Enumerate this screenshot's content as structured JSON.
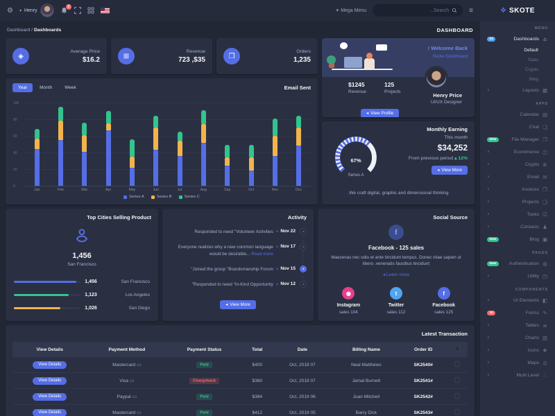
{
  "navbar": {
    "user_name": "Henry",
    "notification_count": "3",
    "mega_menu_label": "Mega Menu",
    "search_placeholder": "...Search",
    "brand": "SKOTE"
  },
  "breadcrumb": {
    "item1": "Dashboard",
    "separator": "/",
    "item2": "Dashboards",
    "page_title": "DASHBOARD"
  },
  "stats": [
    {
      "icon": "tag-icon",
      "glyph": "◈",
      "label": "Average Price",
      "value": "$16.2"
    },
    {
      "icon": "archive-icon",
      "glyph": "⊞",
      "label": "Revenue",
      "value": "723 ,$35"
    },
    {
      "icon": "copy-icon",
      "glyph": "❐",
      "label": "Orders",
      "value": "1,235"
    }
  ],
  "welcome": {
    "title": "! Welcome Back",
    "subtitle": "Skote Dashboard",
    "revenue_value": "$1245",
    "revenue_label": "Revenue",
    "projects_value": "125",
    "projects_label": "Projects",
    "button_label": "View Profile",
    "name": "Henry Price",
    "role": "UI/UX Designer"
  },
  "email_sent": {
    "title": "Email Sent",
    "tabs": [
      "Year",
      "Month",
      "Week"
    ],
    "active_tab": "Year"
  },
  "monthly_earning": {
    "title": "Monthly Earning",
    "this_month": "This month",
    "amount": "$34,252",
    "period_text": "From previous period",
    "delta": "12%",
    "button_label": "View More",
    "footer": ".We craft digital, graphic and dimensional thinking"
  },
  "top_cities": {
    "title": "Top Cities Selling Product",
    "highlight_value": "1,456",
    "highlight_city": "San Francisco"
  },
  "activity": {
    "title": "Activity",
    "items": [
      {
        "date": "Nov 22",
        "text": "Responded to need \"Volunteer Activities",
        "read_more": "",
        "active": false
      },
      {
        "date": "Nov 17",
        "text": "Everyone realizes why a new common language would be desirable...",
        "read_more": "Read more",
        "active": false
      },
      {
        "date": "Nov 15",
        "text": "\"Joined the group \"Boardsmanship Forum",
        "read_more": "",
        "active": true
      },
      {
        "date": "Nov 12",
        "text": "\"Responded to need \"In-Kind Opportunity",
        "read_more": "",
        "active": false
      }
    ],
    "button_label": "View More"
  },
  "social": {
    "title": "Social Source",
    "heading": "Facebook - 125 sales",
    "body": "Maecenas nec odio et ante tincidunt tempus. Donec vitae sapien ut libero .venenatis faucibus tincidunt",
    "learn_more": "Learn more",
    "channels": [
      {
        "name": "Instagram",
        "sales": "sales 104",
        "color": "#e83e8c",
        "glyph": "◉"
      },
      {
        "name": "Twitter",
        "sales": "sales 112",
        "color": "#50a5f1",
        "glyph": "t"
      },
      {
        "name": "Facebook",
        "sales": "sales 125",
        "color": "#556ee6",
        "glyph": "f"
      }
    ]
  },
  "transactions": {
    "title": "Latest Transaction",
    "columns": [
      "View Details",
      "Payment Method",
      "Payment Status",
      "Total",
      "Date",
      "Billing Name",
      "Order ID"
    ],
    "button_label": "View Details",
    "rows": [
      {
        "method": "Mastercard",
        "status": "Paid",
        "status_type": "success",
        "total": "$400",
        "date": "Oct, 2019 07",
        "name": "Neal Matthews",
        "order": "SK2540#"
      },
      {
        "method": "Visa",
        "status": "Chargeback",
        "status_type": "danger",
        "total": "$380",
        "date": "Oct, 2019 07",
        "name": "Jamal Burnett",
        "order": "SK2541#"
      },
      {
        "method": "Paypal",
        "status": "Paid",
        "status_type": "success",
        "total": "$384",
        "date": "Oct, 2019 06",
        "name": "Juan Mitchell",
        "order": "SK2542#"
      },
      {
        "method": "Mastercard",
        "status": "Paid",
        "status_type": "success",
        "total": "$412",
        "date": "Oct, 2019 05",
        "name": "Barry Dick",
        "order": "SK2543#"
      }
    ]
  },
  "sidebar": {
    "brand": "SKOTE",
    "sections": [
      {
        "label": "MENU",
        "items": [
          {
            "label": "Dashboards",
            "icon": "home",
            "badge": "04",
            "badge_color": "info",
            "active": true,
            "submenu": [
              "Default",
              "Saas",
              "Crypto",
              "Blog"
            ],
            "active_sub": "Default"
          },
          {
            "label": "Layouts",
            "icon": "layouts",
            "chevron": true
          }
        ]
      },
      {
        "label": "APPS",
        "items": [
          {
            "label": "Calendar",
            "icon": "calendar"
          },
          {
            "label": "Chat",
            "icon": "chat"
          },
          {
            "label": "File Manager",
            "icon": "file-manager",
            "badge": "New",
            "badge_color": "success"
          },
          {
            "label": "Ecommerce",
            "icon": "ecommerce",
            "chevron": true
          },
          {
            "label": "Crypto",
            "icon": "crypto",
            "chevron": true
          },
          {
            "label": "Email",
            "icon": "email",
            "chevron": true
          },
          {
            "label": "Invoices",
            "icon": "invoices",
            "chevron": true
          },
          {
            "label": "Projects",
            "icon": "projects",
            "chevron": true
          },
          {
            "label": "Tasks",
            "icon": "tasks",
            "chevron": true
          },
          {
            "label": "Contacts",
            "icon": "contacts",
            "chevron": true
          },
          {
            "label": "Blog",
            "icon": "blog",
            "badge": "New",
            "badge_color": "success"
          }
        ]
      },
      {
        "label": "PAGES",
        "items": [
          {
            "label": "Authentication",
            "icon": "authentication",
            "badge": "New",
            "badge_color": "success"
          },
          {
            "label": "Utility",
            "icon": "utility",
            "chevron": true
          }
        ]
      },
      {
        "label": "COMPONENTS",
        "items": [
          {
            "label": "UI Elements",
            "icon": "ui-elements",
            "chevron": true
          },
          {
            "label": "Forms",
            "icon": "forms",
            "badge": "10",
            "badge_color": "danger"
          },
          {
            "label": "Tables",
            "icon": "tables",
            "chevron": true
          },
          {
            "label": "Charts",
            "icon": "charts",
            "chevron": true
          },
          {
            "label": "Icons",
            "icon": "icons",
            "chevron": true
          },
          {
            "label": "Maps",
            "icon": "maps",
            "chevron": true
          },
          {
            "label": "Multi Level",
            "icon": "multi-level",
            "chevron": true
          }
        ]
      }
    ]
  },
  "chart_data": [
    {
      "type": "bar",
      "stacked": true,
      "title": "Email Sent",
      "categories": [
        "Jan",
        "Feb",
        "Mar",
        "Apr",
        "May",
        "Jun",
        "Jul",
        "Aug",
        "Sep",
        "Oct",
        "Nov",
        "Dec"
      ],
      "series": [
        {
          "name": "Series A",
          "color": "#556ee6",
          "values": [
            44,
            55,
            41,
            67,
            22,
            43,
            36,
            52,
            24,
            18,
            36,
            48
          ]
        },
        {
          "name": "Series B",
          "color": "#f1b44c",
          "values": [
            13,
            23,
            20,
            8,
            13,
            27,
            18,
            22,
            10,
            16,
            24,
            22
          ]
        },
        {
          "name": "Series C",
          "color": "#34c38f",
          "values": [
            11,
            17,
            15,
            15,
            21,
            14,
            11,
            17,
            15,
            15,
            21,
            14
          ]
        }
      ],
      "ylim": [
        0,
        100
      ],
      "yticks": [
        0,
        20,
        40,
        60,
        80,
        100
      ],
      "grid": true,
      "legend_position": "bottom"
    },
    {
      "type": "radial-gauge",
      "title": "Monthly Earning",
      "value": 67,
      "unit": "%",
      "label": "Series A",
      "color": "#556ee6"
    },
    {
      "type": "bar-horizontal",
      "title": "Top Cities Selling Product",
      "categories": [
        "San Francisco",
        "Los Angeles",
        "San Diego"
      ],
      "values": [
        1456,
        1123,
        1026
      ],
      "display_values": [
        "1,456",
        "1,123",
        "1,026"
      ],
      "percents": [
        94,
        82,
        70
      ],
      "colors": [
        "#556ee6",
        "#34c38f",
        "#f1b44c"
      ]
    }
  ],
  "accent_colors": {
    "primary": "#556ee6",
    "success": "#34c38f",
    "warning": "#f1b44c",
    "danger": "#f46a6a",
    "info": "#50a5f1",
    "pink": "#e83e8c"
  }
}
